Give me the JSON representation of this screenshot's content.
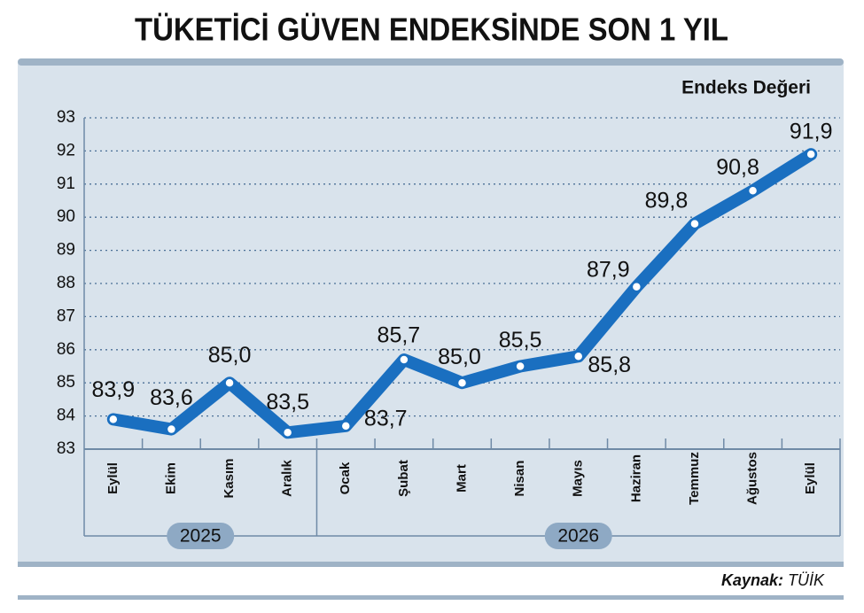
{
  "chart_data": {
    "type": "line",
    "title": "TÜKETİCİ GÜVEN ENDEKSİNDE SON 1 YIL",
    "y_axis_label": "Endeks Değeri",
    "categories": [
      "Eylül",
      "Ekim",
      "Kasım",
      "Aralık",
      "Ocak",
      "Şubat",
      "Mart",
      "Nisan",
      "Mayıs",
      "Haziran",
      "Temmuz",
      "Ağustos",
      "Eylül"
    ],
    "groups": [
      {
        "label": "2025",
        "count": 4
      },
      {
        "label": "2026",
        "count": 9
      }
    ],
    "series": [
      {
        "color": "#1a6fc0",
        "values": [
          83.9,
          83.6,
          85.0,
          83.5,
          83.7,
          85.7,
          85.0,
          85.5,
          85.8,
          87.9,
          89.8,
          90.8,
          91.9
        ],
        "value_labels": [
          "83,9",
          "83,6",
          "85,0",
          "83,5",
          "83,7",
          "85,7",
          "85,0",
          "85,5",
          "85,8",
          "87,9",
          "89,8",
          "90,8",
          "91,9"
        ]
      }
    ],
    "ylim": [
      83,
      93
    ],
    "yticks": [
      83,
      84,
      85,
      86,
      87,
      88,
      89,
      90,
      91,
      92,
      93
    ],
    "grid": true,
    "source": {
      "label": "Kaynak:",
      "text": "TÜİK"
    }
  }
}
